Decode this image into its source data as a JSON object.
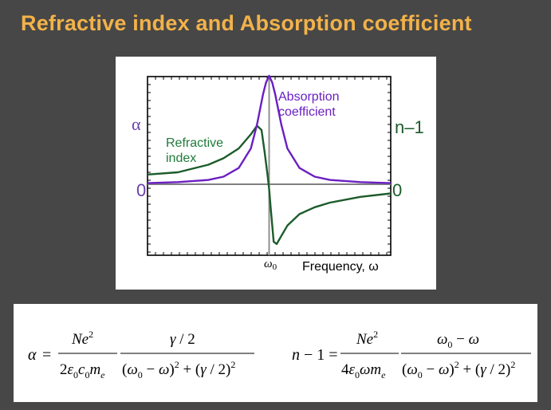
{
  "slide": {
    "title": "Refractive index and Absorption coefficient"
  },
  "colors": {
    "background": "#474747",
    "title": "#f2b24a",
    "absorption": "#6a1fc2",
    "refractive": "#1c5c2a",
    "refractive_label": "#1f7a3a",
    "left_axis": "#6a3fb0",
    "zero_line": "#808080"
  },
  "chart_data": {
    "type": "line",
    "xlabel": "Frequency, ω",
    "x_tick": "ω0",
    "left_axis_label": "α",
    "right_axis_label": "n–1",
    "left_zero_label": "0",
    "right_zero_label": "0",
    "omega0": 0,
    "xlim": [
      -4,
      4
    ],
    "ylim": [
      -1,
      1
    ],
    "grid": false,
    "annotations": {
      "absorption": [
        "Absorption",
        "coefficient"
      ],
      "refractive": [
        "Refractive",
        "index"
      ]
    },
    "series": [
      {
        "key": "absorption",
        "x": [
          -4,
          -3,
          -2,
          -1.5,
          -1,
          -0.6,
          -0.4,
          -0.2,
          -0.1,
          0,
          0.1,
          0.2,
          0.4,
          0.6,
          1,
          1.5,
          2,
          3,
          4
        ],
        "y": [
          0.01,
          0.02,
          0.04,
          0.07,
          0.15,
          0.33,
          0.55,
          0.83,
          0.94,
          1.0,
          0.94,
          0.83,
          0.55,
          0.33,
          0.15,
          0.07,
          0.04,
          0.02,
          0.01
        ]
      },
      {
        "key": "refractive",
        "x": [
          -4,
          -3,
          -2,
          -1.5,
          -1,
          -0.6,
          -0.4,
          -0.25,
          -0.15,
          -0.05,
          0,
          0.05,
          0.15,
          0.25,
          0.4,
          0.6,
          1,
          1.5,
          2,
          3,
          4
        ],
        "y": [
          0.09,
          0.11,
          0.18,
          0.24,
          0.33,
          0.46,
          0.54,
          0.5,
          0.3,
          0.08,
          -0.04,
          -0.2,
          -0.5,
          -0.52,
          -0.45,
          -0.36,
          -0.26,
          -0.2,
          -0.16,
          -0.11,
          -0.08
        ]
      }
    ]
  },
  "equations": {
    "alpha": {
      "lhs": "α =",
      "num1": "Ne²",
      "den1": "2ε₀c₀mₑ",
      "num2": "γ / 2",
      "den2": "(ω₀ − ω)² + (γ / 2)²"
    },
    "refractive": {
      "lhs": "n − 1 =",
      "num1": "Ne²",
      "den1": "4ε₀ωmₑ",
      "num2": "ω₀ − ω",
      "den2": "(ω₀ − ω)² + (γ / 2)²"
    }
  }
}
